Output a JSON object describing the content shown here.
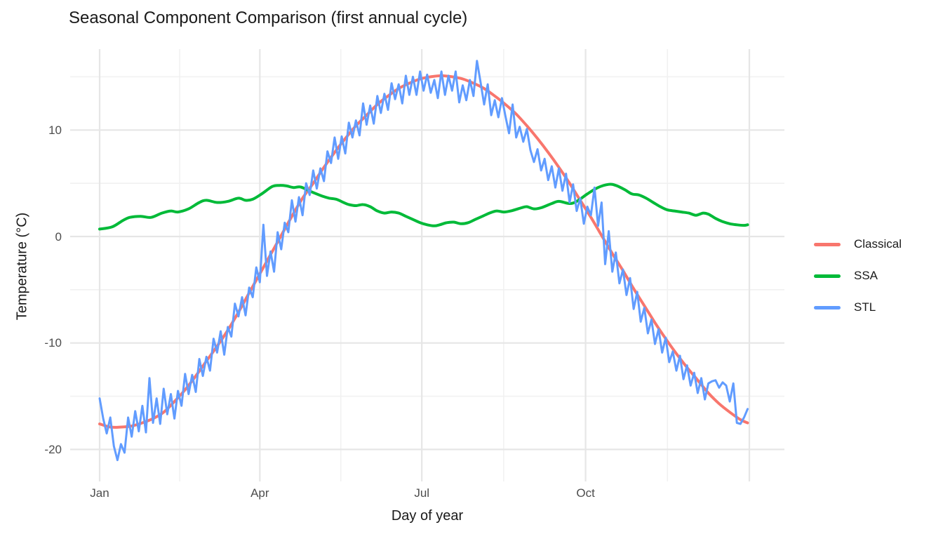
{
  "chart_data": {
    "type": "line",
    "title": "Seasonal Component Comparison (first annual cycle)",
    "xlabel": "Day of year",
    "ylabel": "Temperature (°C)",
    "grid": true,
    "legend_position": "right",
    "x_axis": {
      "domain": [
        1,
        366
      ],
      "major_ticks": [
        {
          "day": 1,
          "label": "Jan"
        },
        {
          "day": 91,
          "label": "Apr"
        },
        {
          "day": 182,
          "label": "Jul"
        },
        {
          "day": 274,
          "label": "Oct"
        },
        {
          "day": 366,
          "label": ""
        }
      ],
      "minor_days": [
        46,
        136.5,
        228,
        320
      ]
    },
    "y_axis": {
      "domain": [
        -23,
        17.6
      ],
      "major_ticks": [
        {
          "value": 10,
          "label": "10"
        },
        {
          "value": 0,
          "label": "0"
        },
        {
          "value": -10,
          "label": "-10"
        },
        {
          "value": -20,
          "label": "-20"
        }
      ],
      "minor_values": [
        15,
        5,
        -5,
        -15
      ]
    },
    "series": [
      {
        "name": "Classical",
        "color": "#F8766D",
        "width": 4,
        "smooth": true,
        "x": [
          1,
          7,
          13,
          19,
          25,
          31,
          37,
          43,
          49,
          55,
          61,
          67,
          73,
          79,
          85,
          91,
          97,
          103,
          109,
          115,
          121,
          127,
          133,
          139,
          145,
          151,
          157,
          163,
          169,
          175,
          181,
          187,
          193,
          199,
          205,
          211,
          217,
          223,
          229,
          235,
          241,
          247,
          253,
          259,
          265,
          271,
          277,
          283,
          289,
          295,
          301,
          307,
          313,
          319,
          325,
          331,
          337,
          343,
          349,
          355,
          361,
          365
        ],
        "y": [
          -17.6,
          -17.9,
          -17.9,
          -17.8,
          -17.5,
          -17.1,
          -16.5,
          -15.5,
          -14.4,
          -13.1,
          -11.7,
          -10.3,
          -8.8,
          -7.1,
          -5.3,
          -3.5,
          -1.7,
          0.1,
          1.9,
          3.6,
          5,
          6.5,
          7.9,
          9.2,
          10.4,
          11.4,
          12.4,
          13.2,
          13.9,
          14.4,
          14.8,
          15,
          15.1,
          15,
          14.8,
          14.4,
          13.9,
          13.2,
          12.4,
          11.5,
          10.4,
          9.2,
          7.9,
          6.5,
          5,
          3.4,
          1.8,
          0.1,
          -1.6,
          -3.2,
          -4.9,
          -6.5,
          -8.1,
          -9.6,
          -11,
          -12.3,
          -13.5,
          -14.7,
          -15.7,
          -16.5,
          -17.2,
          -17.5
        ]
      },
      {
        "name": "SSA",
        "color": "#00BA38",
        "width": 4,
        "smooth": true,
        "x": [
          1,
          8,
          14,
          18,
          24,
          30,
          36,
          41,
          45,
          51,
          57,
          61,
          67,
          73,
          79,
          83,
          87,
          92,
          98,
          102,
          106,
          110,
          114,
          120,
          126,
          130,
          134,
          138,
          141,
          145,
          149,
          153,
          157,
          161,
          165,
          169,
          173,
          177,
          181,
          185,
          189,
          192,
          196,
          200,
          204,
          208,
          212,
          216,
          220,
          224,
          228,
          232,
          238,
          241,
          245,
          249,
          255,
          259,
          265,
          269,
          275,
          281,
          287,
          291,
          296,
          300,
          304,
          308,
          312,
          316,
          320,
          324,
          328,
          332,
          336,
          340,
          343,
          347,
          351,
          355,
          359,
          363,
          365
        ],
        "y": [
          0.7,
          0.9,
          1.5,
          1.8,
          1.9,
          1.8,
          2.2,
          2.4,
          2.3,
          2.6,
          3.2,
          3.4,
          3.2,
          3.3,
          3.6,
          3.4,
          3.5,
          4,
          4.7,
          4.8,
          4.75,
          4.6,
          4.65,
          4.2,
          3.8,
          3.6,
          3.5,
          3.2,
          3,
          2.9,
          3,
          2.8,
          2.4,
          2.2,
          2.3,
          2.2,
          1.9,
          1.6,
          1.3,
          1.1,
          1,
          1.1,
          1.3,
          1.35,
          1.2,
          1.3,
          1.6,
          1.9,
          2.2,
          2.4,
          2.3,
          2.4,
          2.7,
          2.8,
          2.6,
          2.7,
          3.1,
          3.3,
          3.1,
          3.3,
          4,
          4.6,
          4.9,
          4.8,
          4.4,
          4,
          3.9,
          3.6,
          3.2,
          2.8,
          2.5,
          2.4,
          2.3,
          2.2,
          2,
          2.2,
          2.1,
          1.7,
          1.4,
          1.2,
          1.1,
          1.05,
          1.1
        ]
      },
      {
        "name": "STL",
        "color": "#619CFF",
        "width": 3,
        "smooth": false,
        "x": [
          1,
          3,
          5,
          7,
          9,
          11,
          13,
          15,
          17,
          19,
          21,
          23,
          25,
          27,
          29,
          31,
          33,
          35,
          37,
          39,
          41,
          43,
          45,
          47,
          49,
          51,
          53,
          55,
          57,
          59,
          61,
          63,
          65,
          67,
          69,
          71,
          73,
          75,
          77,
          79,
          81,
          83,
          85,
          87,
          89,
          91,
          93,
          95,
          97,
          99,
          101,
          103,
          105,
          107,
          109,
          111,
          113,
          115,
          117,
          119,
          121,
          123,
          125,
          127,
          129,
          131,
          133,
          135,
          137,
          139,
          141,
          143,
          145,
          147,
          149,
          151,
          153,
          155,
          157,
          159,
          161,
          163,
          165,
          167,
          169,
          171,
          173,
          175,
          177,
          179,
          181,
          183,
          185,
          187,
          189,
          191,
          193,
          195,
          197,
          199,
          201,
          203,
          205,
          207,
          209,
          211,
          213,
          215,
          217,
          219,
          221,
          223,
          225,
          227,
          229,
          231,
          233,
          235,
          237,
          239,
          241,
          243,
          245,
          247,
          249,
          251,
          253,
          255,
          257,
          259,
          261,
          263,
          265,
          267,
          269,
          271,
          273,
          275,
          277,
          279,
          281,
          283,
          285,
          287,
          289,
          291,
          293,
          295,
          297,
          299,
          301,
          303,
          305,
          307,
          309,
          311,
          313,
          315,
          317,
          319,
          321,
          323,
          325,
          327,
          329,
          331,
          333,
          335,
          337,
          339,
          341,
          343,
          345,
          347,
          349,
          351,
          353,
          355,
          357,
          359,
          361,
          363,
          365
        ],
        "y": [
          -15.2,
          -17.1,
          -18.5,
          -17,
          -19.7,
          -21,
          -19.5,
          -20.3,
          -17,
          -18.8,
          -16.4,
          -18.3,
          -15.9,
          -18.4,
          -13.3,
          -17.5,
          -15.2,
          -17.6,
          -14.3,
          -16.7,
          -14.8,
          -17.1,
          -14.5,
          -15.9,
          -12.9,
          -14.8,
          -13,
          -14.6,
          -11.5,
          -13.1,
          -11.3,
          -12.6,
          -9.6,
          -10.9,
          -8.9,
          -11.1,
          -8.5,
          -9.4,
          -6.3,
          -7.5,
          -5.7,
          -7.4,
          -4.8,
          -5.7,
          -2.9,
          -4.3,
          1.1,
          -3.7,
          -1.4,
          -3.3,
          0.4,
          -1.2,
          1.3,
          0.4,
          3.4,
          1.4,
          3.7,
          2,
          5,
          3.9,
          6.2,
          4.5,
          6.4,
          5.2,
          8,
          6.9,
          9.3,
          7.3,
          9.4,
          7.8,
          10.7,
          9.3,
          10.9,
          9.5,
          12.5,
          10.5,
          12.3,
          10.6,
          13.2,
          11.6,
          13.4,
          11.9,
          14.4,
          12.9,
          14.3,
          12.5,
          15.1,
          13.3,
          15,
          13.3,
          15.5,
          13.7,
          15.2,
          13.5,
          14.7,
          13,
          15.5,
          13.3,
          15.1,
          13.7,
          15.5,
          12.6,
          14.2,
          12.8,
          14.7,
          13.2,
          16.5,
          14.5,
          12.4,
          14.3,
          11.4,
          12.8,
          11.2,
          13,
          11.3,
          9.7,
          12.4,
          9.3,
          10.3,
          8.9,
          10.1,
          8.1,
          7,
          8.2,
          6.2,
          7.3,
          5.3,
          6.6,
          4.6,
          6.4,
          4.3,
          5.9,
          3.2,
          4.9,
          2.4,
          3.6,
          1.2,
          2.8,
          2,
          4.6,
          1,
          3.2,
          -2.6,
          0.5,
          -3.3,
          -1.5,
          -4.4,
          -3.1,
          -5.5,
          -3.9,
          -6.8,
          -5.2,
          -8,
          -6.7,
          -9.1,
          -7.8,
          -10.1,
          -8.7,
          -10.9,
          -9.5,
          -11.8,
          -10.8,
          -12.6,
          -11.2,
          -13.4,
          -12.1,
          -14,
          -12.8,
          -14.7,
          -13.3,
          -15.3,
          -13.8,
          -13.6,
          -13.5,
          -14.2,
          -13.7,
          -14,
          -15.5,
          -13.8,
          -17.5,
          -17.6,
          -17,
          -16.2
        ]
      }
    ]
  },
  "colors": {
    "background": "#FFFFFF",
    "grid_major": "#E6E6E6",
    "grid_minor": "#F1F1F1",
    "tick_label": "#4D4D4D",
    "text": "#1A1A1A"
  }
}
